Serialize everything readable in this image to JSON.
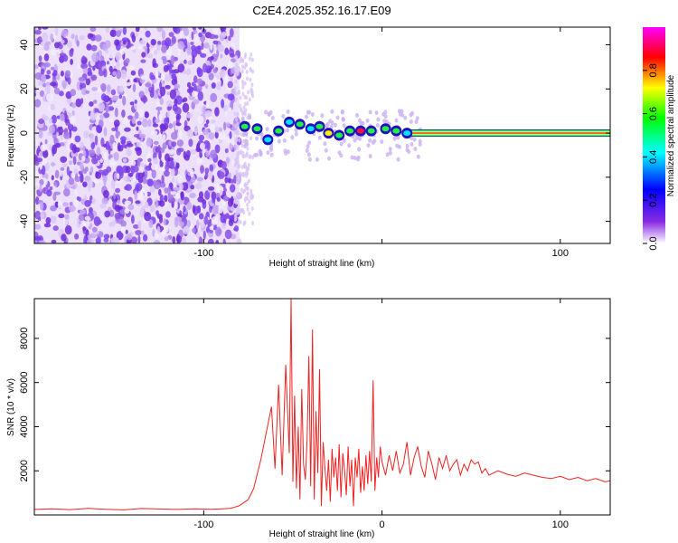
{
  "title": "C2E4.2025.352.16.17.E09",
  "chart_data": [
    {
      "type": "heatmap",
      "xlabel": "Height of straight line (km)",
      "ylabel": "Frequency (Hz)",
      "xlim": [
        -195,
        128
      ],
      "ylim": [
        -50,
        48
      ],
      "xticks": [
        -100,
        0,
        100
      ],
      "xtick_labels": [
        "-100",
        "",
        "100"
      ],
      "yticks": [
        -40,
        -20,
        0,
        20,
        40
      ],
      "ytick_labels": [
        "-40",
        "-20",
        "0",
        "20",
        "40"
      ],
      "grid": false,
      "noise_region_x": [
        -195,
        -80
      ],
      "signal_line_y": 0,
      "colorbar": {
        "label": "Normalized spectral amplitude",
        "range": [
          0,
          1
        ],
        "ticks": [
          0.0,
          0.2,
          0.4,
          0.6,
          0.8
        ],
        "tick_labels": [
          "0.0",
          "0.2",
          "0.4",
          "0.6",
          "0.8"
        ],
        "colors": [
          "#ffffff",
          "#8a2be2",
          "#0000ff",
          "#00ffff",
          "#00ff00",
          "#ffff00",
          "#ff0000",
          "#ff00ff"
        ]
      },
      "blobs": [
        {
          "x": -77,
          "y": 3,
          "amp": 0.55
        },
        {
          "x": -70,
          "y": 2,
          "amp": 0.6
        },
        {
          "x": -64,
          "y": -3,
          "amp": 0.5
        },
        {
          "x": -58,
          "y": 1,
          "amp": 0.55
        },
        {
          "x": -52,
          "y": 5,
          "amp": 0.4
        },
        {
          "x": -46,
          "y": 4,
          "amp": 0.6
        },
        {
          "x": -40,
          "y": 2,
          "amp": 0.5
        },
        {
          "x": -35,
          "y": 3,
          "amp": 0.55
        },
        {
          "x": -30,
          "y": 0,
          "amp": 0.7
        },
        {
          "x": -24,
          "y": -1,
          "amp": 0.55
        },
        {
          "x": -18,
          "y": 1,
          "amp": 0.6
        },
        {
          "x": -12,
          "y": 1,
          "amp": 0.75
        },
        {
          "x": -6,
          "y": 1,
          "amp": 0.6
        },
        {
          "x": 2,
          "y": 2,
          "amp": 0.55
        },
        {
          "x": 8,
          "y": 1,
          "amp": 0.55
        },
        {
          "x": 14,
          "y": 0,
          "amp": 0.5
        }
      ]
    },
    {
      "type": "line",
      "xlabel": "Height of straight line (km)",
      "ylabel": "SNR (10 * v/v)",
      "xlim": [
        -195,
        128
      ],
      "ylim": [
        0,
        9800
      ],
      "xticks": [
        -100,
        0,
        100
      ],
      "xtick_labels": [
        "-100",
        "0",
        "100"
      ],
      "yticks": [
        2000,
        4000,
        6000,
        8000
      ],
      "ytick_labels": [
        "2000",
        "4000",
        "6000",
        "8000"
      ],
      "grid": false,
      "series": [
        {
          "color": "#ee2222",
          "x": [
            -195,
            -185,
            -175,
            -165,
            -155,
            -145,
            -135,
            -125,
            -115,
            -105,
            -95,
            -85,
            -80,
            -75,
            -72,
            -68,
            -65,
            -62,
            -60,
            -58,
            -56,
            -54,
            -52,
            -51,
            -50,
            -49,
            -48,
            -47,
            -46,
            -45,
            -44,
            -43,
            -42,
            -41,
            -40,
            -39,
            -38,
            -37,
            -36,
            -35,
            -34,
            -33,
            -32,
            -31,
            -30,
            -29,
            -28,
            -27,
            -26,
            -25,
            -24,
            -23,
            -22,
            -21,
            -20,
            -19,
            -18,
            -17,
            -16,
            -15,
            -14,
            -13,
            -12,
            -11,
            -10,
            -9,
            -8,
            -7,
            -6,
            -5,
            -4,
            -3,
            -2,
            -1,
            0,
            2,
            4,
            6,
            8,
            10,
            12,
            14,
            16,
            18,
            20,
            22,
            24,
            26,
            28,
            30,
            32,
            34,
            36,
            38,
            40,
            42,
            44,
            46,
            48,
            50,
            52,
            54,
            56,
            58,
            60,
            65,
            70,
            75,
            80,
            85,
            90,
            95,
            100,
            105,
            110,
            115,
            120,
            125,
            128
          ],
          "y": [
            250,
            280,
            240,
            300,
            260,
            230,
            290,
            270,
            250,
            280,
            260,
            300,
            420,
            700,
            1200,
            2500,
            3700,
            4900,
            2100,
            5900,
            1800,
            6800,
            2800,
            9800,
            1500,
            5400,
            1200,
            4000,
            700,
            5700,
            2300,
            1600,
            3400,
            7200,
            1300,
            8400,
            700,
            4700,
            1900,
            6600,
            400,
            3300,
            2100,
            1100,
            2500,
            600,
            3000,
            1700,
            2600,
            1100,
            3200,
            800,
            2800,
            2000,
            900,
            3100,
            1300,
            2500,
            400,
            2600,
            1700,
            3000,
            1000,
            2200,
            1100,
            2700,
            1400,
            2900,
            1500,
            6100,
            1100,
            2600,
            1700,
            3100,
            2400,
            1800,
            2700,
            2000,
            2900,
            1900,
            2300,
            3300,
            1800,
            2600,
            3100,
            2200,
            1700,
            2900,
            2300,
            1600,
            2600,
            2100,
            2700,
            2000,
            2300,
            2500,
            1800,
            2300,
            2000,
            2500,
            2300,
            2400,
            1900,
            2100,
            1800,
            2000,
            1850,
            1750,
            1900,
            1800,
            1700,
            1650,
            1750,
            1600,
            1700,
            1550,
            1650,
            1500,
            1550
          ]
        }
      ]
    }
  ]
}
